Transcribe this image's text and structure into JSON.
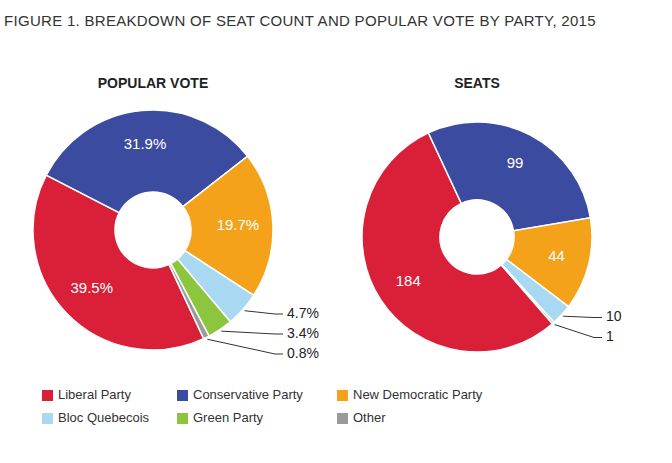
{
  "title": "FIGURE 1. BREAKDOWN OF SEAT COUNT AND POPULAR VOTE BY PARTY, 2015",
  "chart_data": [
    {
      "type": "pie",
      "title": "POPULAR VOTE",
      "categories": [
        "Liberal Party",
        "Conservative Party",
        "New Democratic Party",
        "Bloc Quebecois",
        "Green Party",
        "Other"
      ],
      "values": [
        39.5,
        31.9,
        19.7,
        4.7,
        3.4,
        0.8
      ],
      "value_labels": [
        "39.5%",
        "31.9%",
        "19.7%",
        "4.7%",
        "3.4%",
        "0.8%"
      ],
      "colors": [
        "#d92038",
        "#3b4ba0",
        "#f5a21b",
        "#a9d9f2",
        "#8cc63f",
        "#9a9a9a"
      ],
      "data_labels": true,
      "legend": "bottom"
    },
    {
      "type": "pie",
      "title": "SEATS",
      "categories": [
        "Liberal Party",
        "Conservative Party",
        "New Democratic Party",
        "Bloc Quebecois",
        "Green Party"
      ],
      "values": [
        184,
        99,
        44,
        10,
        1
      ],
      "colors": [
        "#d92038",
        "#3b4ba0",
        "#f5a21b",
        "#a9d9f2",
        "#8cc63f"
      ],
      "data_labels": true
    }
  ]
}
